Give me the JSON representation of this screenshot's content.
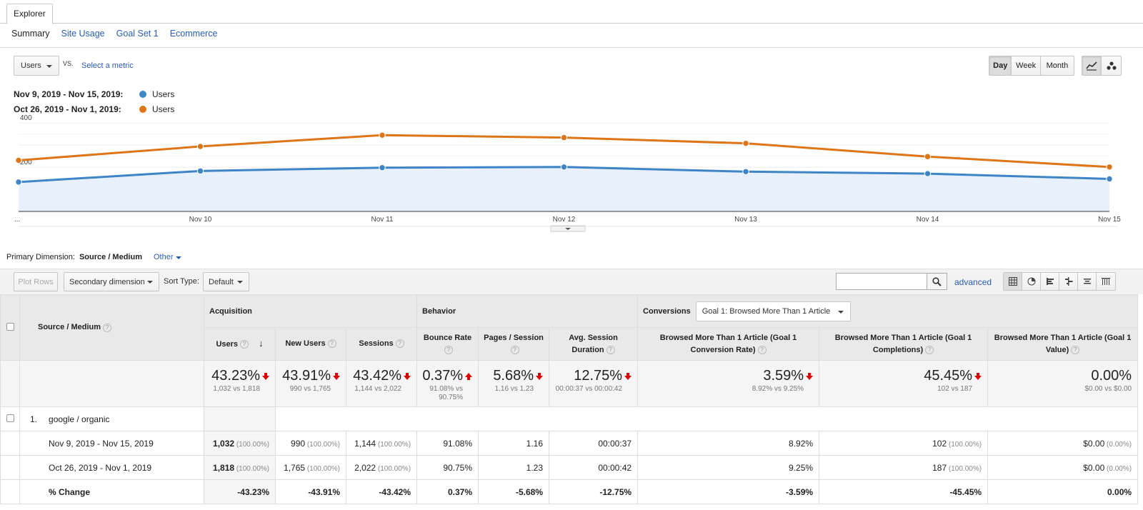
{
  "header": {
    "tab": "Explorer",
    "subtabs": [
      "Summary",
      "Site Usage",
      "Goal Set 1",
      "Ecommerce"
    ]
  },
  "controls": {
    "metric": "Users",
    "vs": "VS.",
    "select_metric": "Select a metric",
    "periods": [
      "Day",
      "Week",
      "Month"
    ],
    "selected_period": "Day"
  },
  "legend": [
    {
      "range": "Nov 9, 2019 - Nov 15, 2019:",
      "metric": "Users",
      "color": "#3d85c6"
    },
    {
      "range": "Oct 26, 2019 - Nov 1, 2019:",
      "metric": "Users",
      "color": "#dd7619"
    }
  ],
  "chart_data": {
    "type": "line",
    "x": [
      "...",
      "Nov 10",
      "Nov 11",
      "Nov 12",
      "Nov 13",
      "Nov 14",
      "Nov 15"
    ],
    "yticks": [
      "400",
      "200"
    ],
    "ylim": [
      0,
      420
    ],
    "series": [
      {
        "name": "Users",
        "period": "Nov 9, 2019 - Nov 15, 2019",
        "color": "#3d85c6",
        "values": [
          133,
          183,
          198,
          201,
          180,
          171,
          147
        ]
      },
      {
        "name": "Users",
        "period": "Oct 26, 2019 - Nov 1, 2019",
        "color": "#dd7619",
        "values": [
          231,
          294,
          345,
          334,
          308,
          248,
          201
        ]
      }
    ]
  },
  "dimension": {
    "label": "Primary Dimension:",
    "value": "Source / Medium",
    "other": "Other"
  },
  "toolbar": {
    "plot_rows": "Plot Rows",
    "secondary": "Secondary dimension",
    "sort_label": "Sort Type:",
    "sort_value": "Default",
    "advanced": "advanced"
  },
  "table": {
    "dim_header": "Source / Medium",
    "groups": {
      "acq": "Acquisition",
      "beh": "Behavior",
      "conv": "Conversions",
      "goal": "Goal 1: Browsed More Than 1 Article"
    },
    "columns": [
      "Users",
      "New Users",
      "Sessions",
      "Bounce Rate",
      "Pages / Session",
      "Avg. Session Duration",
      "Browsed More Than 1 Article (Goal 1 Conversion Rate)",
      "Browsed More Than 1 Article (Goal 1 Completions)",
      "Browsed More Than 1 Article (Goal 1 Value)"
    ],
    "totals": [
      {
        "value": "43.23%",
        "dir": "down",
        "sub": "1,032 vs 1,818"
      },
      {
        "value": "43.91%",
        "dir": "down",
        "sub": "990 vs 1,765"
      },
      {
        "value": "43.42%",
        "dir": "down",
        "sub": "1,144 vs 2,022"
      },
      {
        "value": "0.37%",
        "dir": "up",
        "sub": "91.08% vs 90.75%"
      },
      {
        "value": "5.68%",
        "dir": "down",
        "sub": "1.16 vs 1.23"
      },
      {
        "value": "12.75%",
        "dir": "down",
        "sub": "00:00:37 vs 00:00:42"
      },
      {
        "value": "3.59%",
        "dir": "down",
        "sub": "8.92% vs 9.25%"
      },
      {
        "value": "45.45%",
        "dir": "down",
        "sub": "102 vs 187"
      },
      {
        "value": "0.00%",
        "dir": "none",
        "sub": "$0.00 vs $0.00"
      }
    ],
    "row_index": "1.",
    "row_name": "google / organic",
    "rows": [
      {
        "label": "Nov 9, 2019 - Nov 15, 2019",
        "cells": [
          {
            "v": "1,032",
            "p": "(100.00%)"
          },
          {
            "v": "990",
            "p": "(100.00%)"
          },
          {
            "v": "1,144",
            "p": "(100.00%)"
          },
          {
            "v": "91.08%"
          },
          {
            "v": "1.16"
          },
          {
            "v": "00:00:37"
          },
          {
            "v": "8.92%"
          },
          {
            "v": "102",
            "p": "(100.00%)"
          },
          {
            "v": "$0.00",
            "p": "(0.00%)"
          }
        ]
      },
      {
        "label": "Oct 26, 2019 - Nov 1, 2019",
        "cells": [
          {
            "v": "1,818",
            "p": "(100.00%)"
          },
          {
            "v": "1,765",
            "p": "(100.00%)"
          },
          {
            "v": "2,022",
            "p": "(100.00%)"
          },
          {
            "v": "90.75%"
          },
          {
            "v": "1.23"
          },
          {
            "v": "00:00:42"
          },
          {
            "v": "9.25%"
          },
          {
            "v": "187",
            "p": "(100.00%)"
          },
          {
            "v": "$0.00",
            "p": "(0.00%)"
          }
        ]
      }
    ],
    "change": {
      "label": "% Change",
      "cells": [
        "-43.23%",
        "-43.91%",
        "-43.42%",
        "0.37%",
        "-5.68%",
        "-12.75%",
        "-3.59%",
        "-45.45%",
        "0.00%"
      ]
    }
  }
}
